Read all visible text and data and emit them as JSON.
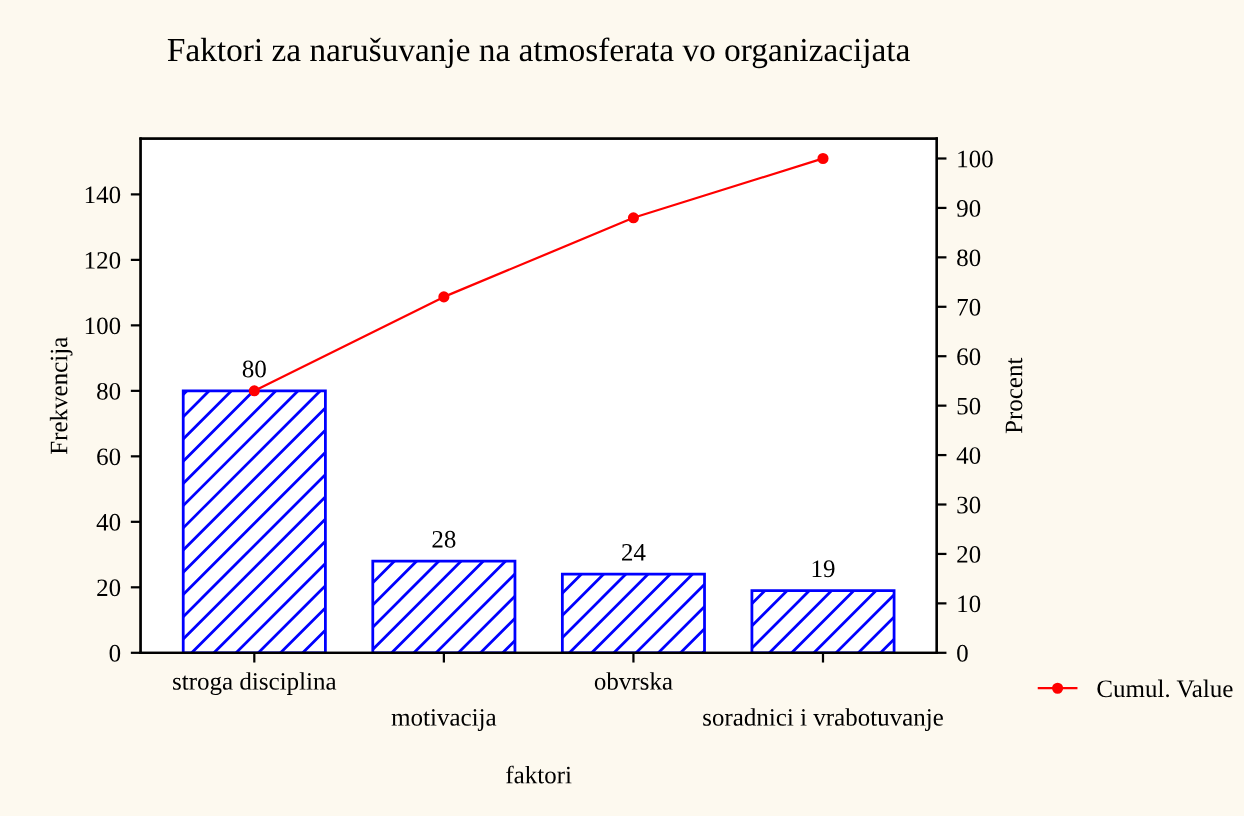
{
  "chart_data": {
    "type": "bar",
    "title": "Faktori za narušuvanje na atmosferata vo organizacijata",
    "xlabel": "faktori",
    "ylabel": "Frekvencija",
    "y2label": "Procent",
    "categories": [
      "stroga disciplina",
      "motivacija",
      "obvrska",
      "soradnici i vrabotuvanje"
    ],
    "series": [
      {
        "color": "#0000ff",
        "values": [
          80,
          28,
          24,
          19
        ],
        "value_labels": [
          "80",
          "28",
          "24",
          "19"
        ]
      },
      {
        "type": "line",
        "name": "Cumul. Value",
        "color": "#ff0000",
        "axis": "y2",
        "marker": "circle",
        "values": [
          53,
          72,
          88,
          100
        ]
      }
    ],
    "ylim": [
      0,
      157
    ],
    "yticks": [
      0,
      20,
      40,
      60,
      80,
      100,
      120,
      140
    ],
    "y2lim": [
      0,
      104
    ],
    "y2ticks": [
      0,
      10,
      20,
      30,
      40,
      50,
      60,
      70,
      80,
      90,
      100
    ],
    "grid": false,
    "legend": "bottom right"
  }
}
